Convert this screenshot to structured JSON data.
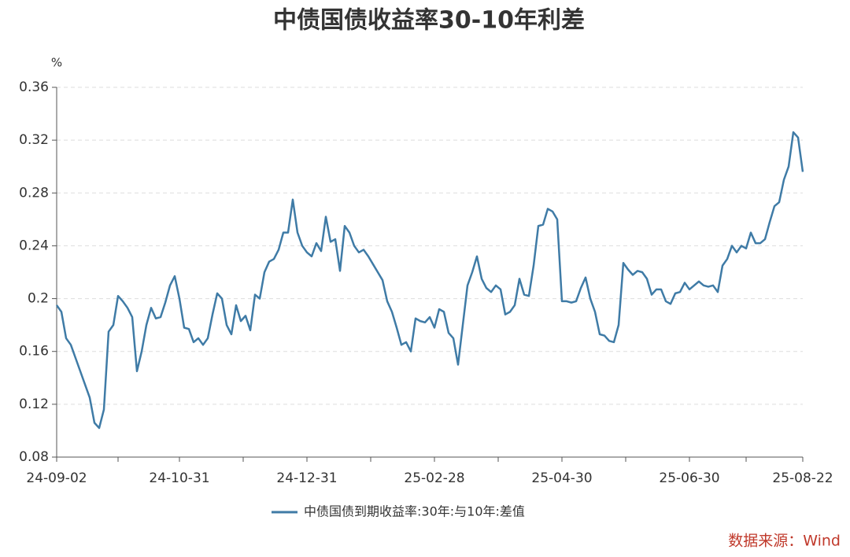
{
  "chart_data": {
    "type": "line",
    "title": "中债国债收益率30-10年利差",
    "y_unit": "%",
    "source": "数据来源：Wind",
    "categories": [
      "24-09-02",
      null,
      null,
      null,
      null,
      null,
      null,
      null,
      null,
      null,
      null,
      null,
      null,
      null,
      null,
      null,
      null,
      null,
      null,
      null,
      null,
      null,
      null,
      null,
      null,
      null,
      "24-10-31",
      null,
      null,
      null,
      null,
      null,
      null,
      null,
      null,
      null,
      null,
      null,
      null,
      null,
      null,
      null,
      null,
      null,
      null,
      null,
      null,
      null,
      null,
      null,
      null,
      null,
      null,
      "24-12-31",
      null,
      null,
      null,
      null,
      null,
      null,
      null,
      null,
      null,
      null,
      null,
      null,
      null,
      null,
      null,
      null,
      null,
      null,
      null,
      null,
      null,
      null,
      null,
      null,
      null,
      null,
      "25-02-28",
      null,
      null,
      null,
      null,
      null,
      null,
      null,
      null,
      null,
      null,
      null,
      null,
      null,
      null,
      null,
      null,
      null,
      null,
      null,
      null,
      null,
      null,
      null,
      null,
      null,
      null,
      "25-04-30",
      null,
      null,
      null,
      null,
      null,
      null,
      null,
      null,
      null,
      null,
      null,
      null,
      null,
      null,
      null,
      null,
      null,
      null,
      null,
      null,
      null,
      null,
      null,
      null,
      null,
      null,
      "25-06-30",
      null,
      null,
      null,
      null,
      null,
      null,
      null,
      null,
      null,
      null,
      null,
      null,
      null,
      null,
      null,
      null,
      null,
      null,
      null,
      null,
      null,
      null,
      null,
      "25-08-22"
    ],
    "series": [
      {
        "name": "中债国债到期收益率:30年:与10年:差值",
        "color": "#3f7ba6",
        "values": [
          0.195,
          0.19,
          0.17,
          0.165,
          0.155,
          0.145,
          0.135,
          0.125,
          0.106,
          0.102,
          0.116,
          0.175,
          0.18,
          0.202,
          0.198,
          0.193,
          0.186,
          0.145,
          0.16,
          0.18,
          0.193,
          0.185,
          0.186,
          0.197,
          0.21,
          0.217,
          0.2,
          0.178,
          0.177,
          0.167,
          0.17,
          0.165,
          0.17,
          0.188,
          0.204,
          0.2,
          0.18,
          0.173,
          0.195,
          0.183,
          0.187,
          0.176,
          0.203,
          0.2,
          0.22,
          0.228,
          0.23,
          0.237,
          0.25,
          0.25,
          0.275,
          0.25,
          0.24,
          0.235,
          0.232,
          0.242,
          0.236,
          0.262,
          0.243,
          0.245,
          0.221,
          0.255,
          0.25,
          0.24,
          0.235,
          0.237,
          0.232,
          0.226,
          0.22,
          0.214,
          0.198,
          0.19,
          0.178,
          0.165,
          0.167,
          0.16,
          0.185,
          0.183,
          0.182,
          0.186,
          0.178,
          0.192,
          0.19,
          0.174,
          0.17,
          0.15,
          0.18,
          0.21,
          0.22,
          0.232,
          0.215,
          0.208,
          0.205,
          0.21,
          0.207,
          0.188,
          0.19,
          0.195,
          0.215,
          0.203,
          0.202,
          0.225,
          0.255,
          0.256,
          0.268,
          0.266,
          0.26,
          0.198,
          0.198,
          0.197,
          0.198,
          0.208,
          0.216,
          0.2,
          0.19,
          0.173,
          0.172,
          0.168,
          0.167,
          0.18,
          0.227,
          0.222,
          0.218,
          0.221,
          0.22,
          0.215,
          0.203,
          0.207,
          0.207,
          0.198,
          0.196,
          0.204,
          0.205,
          0.212,
          0.207,
          0.21,
          0.213,
          0.21,
          0.209,
          0.21,
          0.205,
          0.225,
          0.23,
          0.24,
          0.235,
          0.24,
          0.238,
          0.25,
          0.242,
          0.242,
          0.245,
          0.258,
          0.27,
          0.273,
          0.29,
          0.3,
          0.326,
          0.322,
          0.296
        ]
      }
    ],
    "ylim": [
      0.08,
      0.36
    ],
    "yticks": [
      0.08,
      0.12,
      0.16,
      0.2,
      0.24,
      0.28,
      0.32,
      0.36
    ],
    "grid": true
  }
}
